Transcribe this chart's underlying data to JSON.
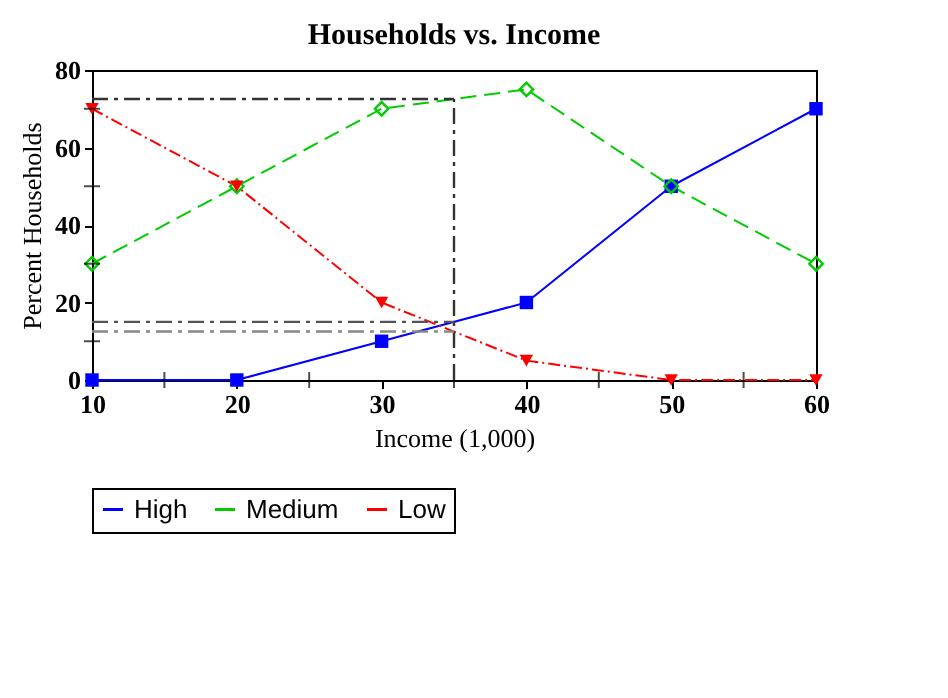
{
  "chart_data": {
    "type": "line",
    "title": "Households vs. Income",
    "xlabel": "Income (1,000)",
    "ylabel": "Percent Households",
    "x": [
      10,
      20,
      30,
      40,
      50,
      60
    ],
    "series": [
      {
        "name": "High",
        "color": "#0000ff",
        "values": [
          0,
          0,
          10,
          20,
          50,
          70
        ],
        "marker": "square",
        "line_style": "solid"
      },
      {
        "name": "Medium",
        "color": "#00cc00",
        "values": [
          30,
          50,
          70,
          75,
          50,
          30
        ],
        "marker": "diamond",
        "line_style": "dashed"
      },
      {
        "name": "Low",
        "color": "#ff0000",
        "values": [
          70,
          50,
          20,
          5,
          0,
          0
        ],
        "marker": "triangle",
        "line_style": "dotted"
      }
    ],
    "xlim": [
      10,
      60
    ],
    "ylim": [
      0,
      80
    ],
    "xticks": [
      10,
      {
        "value": 15,
        "label": null
      },
      20,
      {
        "value": 25,
        "label": null
      },
      30,
      {
        "value": 35,
        "label": null
      },
      40,
      {
        "value": 45,
        "label": null
      },
      50,
      {
        "value": 55,
        "label": null
      },
      60
    ],
    "yticks": [
      0,
      {
        "value": 10,
        "label": null
      },
      20,
      {
        "value": 30,
        "label": null
      },
      40,
      {
        "value": 50,
        "label": null
      },
      60,
      {
        "value": 70,
        "label": null
      },
      80
    ],
    "ref_lines": [
      {
        "axis": "x",
        "value": 35,
        "color": "#333333",
        "line_style": "dashdot"
      },
      {
        "axis": "y",
        "value": 72.5,
        "color": "#333333",
        "line_style": "dashdot"
      },
      {
        "axis": "y",
        "value": 15,
        "color": "#555555",
        "line_style": "dashdot"
      },
      {
        "axis": "y",
        "value": 12.5,
        "color": "#888888",
        "line_style": "dashdot"
      }
    ],
    "grid": false,
    "legend": "bottom"
  }
}
